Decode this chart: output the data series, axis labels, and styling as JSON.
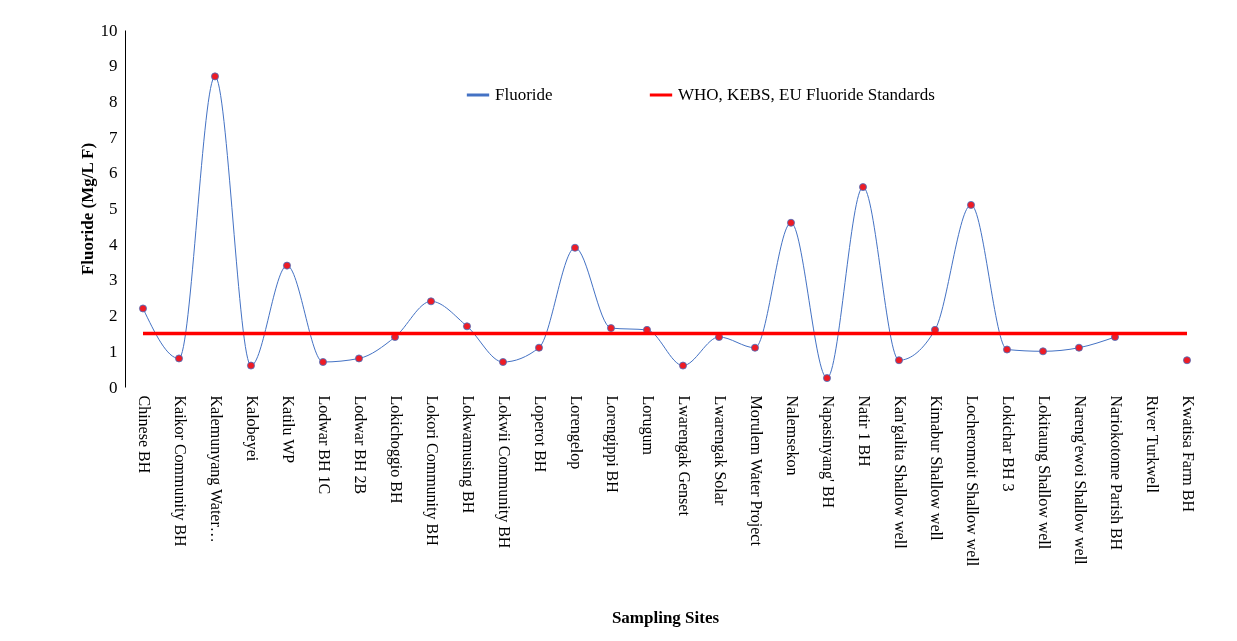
{
  "chart_data": {
    "type": "line",
    "xlabel": "Sampling Sites",
    "ylabel": "Fluoride (Mg/L F)",
    "categories": [
      "Chinese BH",
      "Kaikor Community BH",
      "Kalemunyang Water…",
      "Kalobeyei",
      "Katilu WP",
      "Lodwar BH 1C",
      "Lodwar BH 2B",
      "Lokichoggio BH",
      "Lokori Community BH",
      "Lokwamusing BH",
      "Lokwii Community BH",
      "Loperot BH",
      "Lorengelop",
      "Lorengippi BH",
      "Lorugum",
      "Lwarengak Genset",
      "Lwarengak Solar",
      "Morulem Water Project",
      "Nalemsekon",
      "Napasinyang' BH",
      "Natir 1 BH",
      "Kan'galita Shallow well",
      "Kimabur Shallow well",
      "Locheromoit Shallow well",
      "Lokichar BH 3",
      "Lokitaung Shallow well",
      "Nareng'ewoi Shallow well",
      "Nariokotome Parish BH",
      "River Turkwell",
      "Kwatisa Farm BH"
    ],
    "series": [
      {
        "name": "Fluoride",
        "color": "#4472c4",
        "values": [
          2.2,
          0.8,
          8.7,
          0.6,
          3.4,
          0.7,
          0.8,
          1.4,
          2.4,
          1.7,
          0.7,
          1.1,
          3.9,
          1.65,
          1.6,
          0.6,
          1.4,
          1.1,
          4.6,
          0.25,
          5.6,
          0.75,
          1.6,
          5.1,
          1.05,
          1.0,
          1.1,
          1.4,
          null,
          0.75
        ]
      }
    ],
    "ref_lines": [
      {
        "axis": "y",
        "value": 1.5,
        "label": "WHO, KEBS, EU Fluoride Standards",
        "color": "#ff0000"
      }
    ],
    "ylim": [
      0,
      10
    ],
    "yticks": [
      0,
      1,
      2,
      3,
      4,
      5,
      6,
      7,
      8,
      9,
      10
    ],
    "marker": "circle",
    "legend": "top",
    "grid": false
  }
}
